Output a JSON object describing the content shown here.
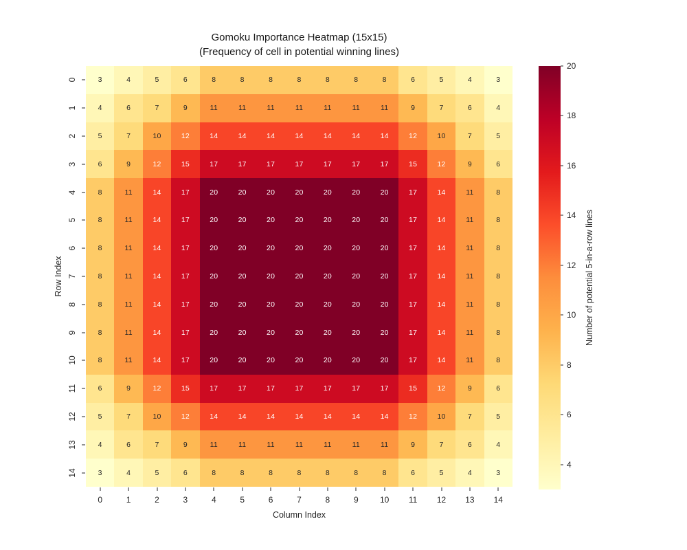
{
  "chart_data": {
    "type": "heatmap",
    "title": "Gomoku Importance Heatmap (15x15)",
    "subtitle": "(Frequency of cell in potential winning lines)",
    "xlabel": "Column Index",
    "ylabel": "Row Index",
    "x_tick_labels": [
      "0",
      "1",
      "2",
      "3",
      "4",
      "5",
      "6",
      "7",
      "8",
      "9",
      "10",
      "11",
      "12",
      "13",
      "14"
    ],
    "y_tick_labels": [
      "0",
      "1",
      "2",
      "3",
      "4",
      "5",
      "6",
      "7",
      "8",
      "9",
      "10",
      "11",
      "12",
      "13",
      "14"
    ],
    "matrix": [
      [
        3,
        4,
        5,
        6,
        8,
        8,
        8,
        8,
        8,
        8,
        8,
        6,
        5,
        4,
        3
      ],
      [
        4,
        6,
        7,
        9,
        11,
        11,
        11,
        11,
        11,
        11,
        11,
        9,
        7,
        6,
        4
      ],
      [
        5,
        7,
        10,
        12,
        14,
        14,
        14,
        14,
        14,
        14,
        14,
        12,
        10,
        7,
        5
      ],
      [
        6,
        9,
        12,
        15,
        17,
        17,
        17,
        17,
        17,
        17,
        17,
        15,
        12,
        9,
        6
      ],
      [
        8,
        11,
        14,
        17,
        20,
        20,
        20,
        20,
        20,
        20,
        20,
        17,
        14,
        11,
        8
      ],
      [
        8,
        11,
        14,
        17,
        20,
        20,
        20,
        20,
        20,
        20,
        20,
        17,
        14,
        11,
        8
      ],
      [
        8,
        11,
        14,
        17,
        20,
        20,
        20,
        20,
        20,
        20,
        20,
        17,
        14,
        11,
        8
      ],
      [
        8,
        11,
        14,
        17,
        20,
        20,
        20,
        20,
        20,
        20,
        20,
        17,
        14,
        11,
        8
      ],
      [
        8,
        11,
        14,
        17,
        20,
        20,
        20,
        20,
        20,
        20,
        20,
        17,
        14,
        11,
        8
      ],
      [
        8,
        11,
        14,
        17,
        20,
        20,
        20,
        20,
        20,
        20,
        20,
        17,
        14,
        11,
        8
      ],
      [
        8,
        11,
        14,
        17,
        20,
        20,
        20,
        20,
        20,
        20,
        20,
        17,
        14,
        11,
        8
      ],
      [
        6,
        9,
        12,
        15,
        17,
        17,
        17,
        17,
        17,
        17,
        17,
        15,
        12,
        9,
        6
      ],
      [
        5,
        7,
        10,
        12,
        14,
        14,
        14,
        14,
        14,
        14,
        14,
        12,
        10,
        7,
        5
      ],
      [
        4,
        6,
        7,
        9,
        11,
        11,
        11,
        11,
        11,
        11,
        11,
        9,
        7,
        6,
        4
      ],
      [
        3,
        4,
        5,
        6,
        8,
        8,
        8,
        8,
        8,
        8,
        8,
        6,
        5,
        4,
        3
      ]
    ],
    "vmin": 3,
    "vmax": 20,
    "annotated": true,
    "grid_lines": false,
    "colormap": {
      "name": "YlOrRd",
      "stops": [
        "#ffffcc",
        "#ffeda0",
        "#fed976",
        "#feb24c",
        "#fd8d3c",
        "#fc4e2a",
        "#e31a1c",
        "#bd0026",
        "#800026"
      ]
    },
    "colorbar": {
      "label": "Number of potential 5-in-a-row lines",
      "ticks": [
        4,
        6,
        8,
        10,
        12,
        14,
        16,
        18,
        20
      ],
      "position": "right"
    },
    "colors": {
      "annotation_dark": "#262626",
      "annotation_light": "#ffffff",
      "tick_text": "#262626",
      "title_text": "#1a1a1a",
      "background": "#ffffff"
    }
  }
}
